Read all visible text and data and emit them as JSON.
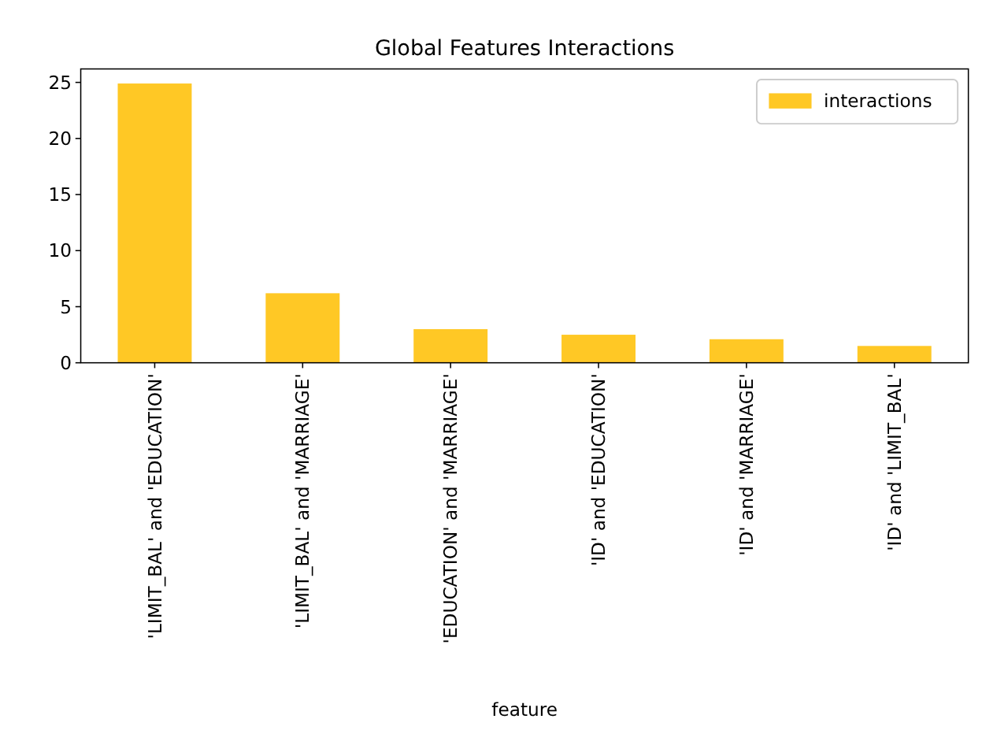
{
  "chart_data": {
    "type": "bar",
    "title": "Global Features Interactions",
    "xlabel": "feature",
    "categories": [
      "'LIMIT_BAL' and 'EDUCATION'",
      "'LIMIT_BAL' and 'MARRIAGE'",
      "'EDUCATION' and 'MARRIAGE'",
      "'ID' and 'EDUCATION'",
      "'ID' and 'MARRIAGE'",
      "'ID' and 'LIMIT_BAL'"
    ],
    "series": [
      {
        "name": "interactions",
        "color": "#ffc825",
        "values": [
          24.9,
          6.2,
          3.0,
          2.5,
          2.1,
          1.5
        ]
      }
    ],
    "ylim": [
      0,
      26.2
    ],
    "yticks": [
      0,
      5,
      10,
      15,
      20,
      25
    ],
    "legend": "top right"
  }
}
